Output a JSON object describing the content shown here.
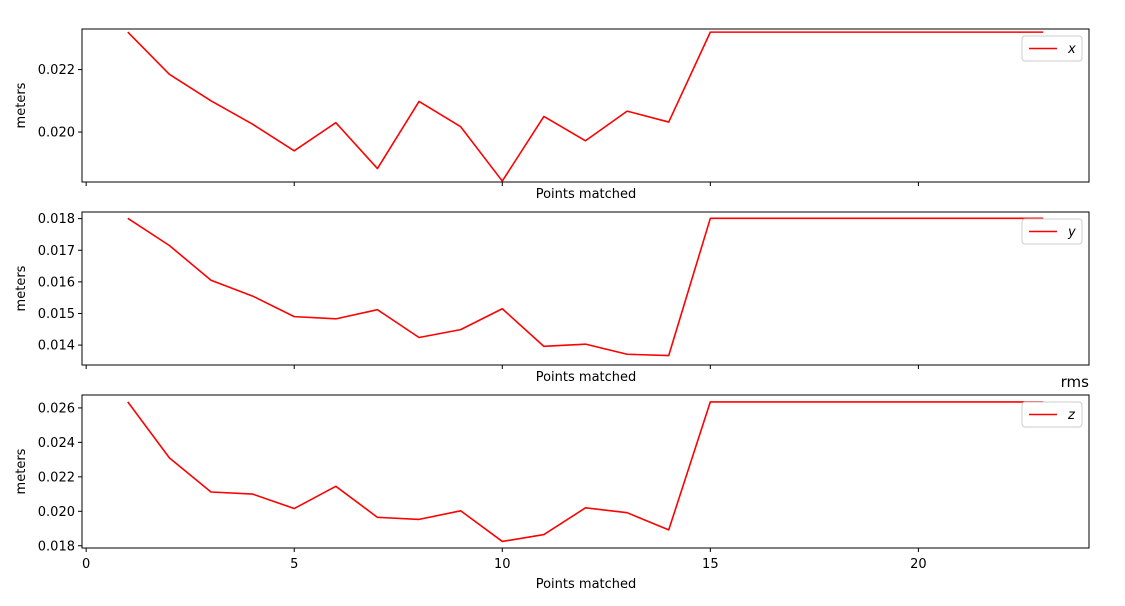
{
  "chart_data": [
    {
      "type": "line",
      "title": "",
      "xlabel": "Points matched",
      "ylabel": "meters",
      "xlim": [
        -0.1,
        24.1
      ],
      "ylim": [
        0.0184,
        0.0233
      ],
      "xticks": [
        0,
        5,
        10,
        15,
        20
      ],
      "show_xticklabels": false,
      "yticks": [
        0.02,
        0.022
      ],
      "ytick_labels": [
        "0.020",
        "0.022"
      ],
      "grid": false,
      "legend_position": "top-right",
      "color": "#ff0000",
      "series": [
        {
          "name": "x",
          "x": [
            1,
            2,
            3,
            4,
            5,
            6,
            7,
            8,
            9,
            10,
            11,
            12,
            13,
            14,
            15,
            16,
            17,
            18,
            19,
            20,
            21,
            22,
            23
          ],
          "y": [
            0.0232,
            0.02185,
            0.021,
            0.02025,
            0.0194,
            0.0203,
            0.01883,
            0.02098,
            0.02017,
            0.01843,
            0.0205,
            0.01972,
            0.02067,
            0.02032,
            0.0232,
            0.0232,
            0.0232,
            0.0232,
            0.0232,
            0.0232,
            0.0232,
            0.0232,
            0.0232
          ]
        }
      ]
    },
    {
      "type": "line",
      "title": "",
      "xlabel": "Points matched",
      "ylabel": "meters",
      "xlim": [
        -0.1,
        24.1
      ],
      "ylim": [
        0.01337,
        0.01821
      ],
      "xticks": [
        0,
        5,
        10,
        15,
        20
      ],
      "show_xticklabels": false,
      "yticks": [
        0.014,
        0.015,
        0.016,
        0.017,
        0.018
      ],
      "ytick_labels": [
        "0.014",
        "0.015",
        "0.016",
        "0.017",
        "0.018"
      ],
      "grid": false,
      "legend_position": "top-right",
      "color": "#ff0000",
      "series": [
        {
          "name": "y",
          "x": [
            1,
            2,
            3,
            4,
            5,
            6,
            7,
            8,
            9,
            10,
            11,
            12,
            13,
            14,
            15,
            16,
            17,
            18,
            19,
            20,
            21,
            22,
            23
          ],
          "y": [
            0.01801,
            0.01715,
            0.01605,
            0.01555,
            0.0149,
            0.01483,
            0.01512,
            0.01424,
            0.01449,
            0.01515,
            0.01396,
            0.01403,
            0.01371,
            0.01367,
            0.01801,
            0.01801,
            0.01801,
            0.01801,
            0.01801,
            0.01801,
            0.01801,
            0.01801,
            0.01801
          ]
        }
      ]
    },
    {
      "type": "line",
      "title": "rms",
      "xlabel": "Points matched",
      "ylabel": "meters",
      "xlim": [
        -0.1,
        24.1
      ],
      "ylim": [
        0.01787,
        0.02675
      ],
      "xticks": [
        0,
        5,
        10,
        15,
        20
      ],
      "xtick_labels": [
        "0",
        "5",
        "10",
        "15",
        "20"
      ],
      "show_xticklabels": true,
      "yticks": [
        0.018,
        0.02,
        0.022,
        0.024,
        0.026
      ],
      "ytick_labels": [
        "0.018",
        "0.020",
        "0.022",
        "0.024",
        "0.026"
      ],
      "grid": false,
      "legend_position": "top-right",
      "color": "#ff0000",
      "series": [
        {
          "name": "z",
          "x": [
            1,
            2,
            3,
            4,
            5,
            6,
            7,
            8,
            9,
            10,
            11,
            12,
            13,
            14,
            15,
            16,
            17,
            18,
            19,
            20,
            21,
            22,
            23
          ],
          "y": [
            0.02635,
            0.0231,
            0.02112,
            0.021,
            0.02016,
            0.02145,
            0.01965,
            0.01953,
            0.02003,
            0.01825,
            0.01865,
            0.0202,
            0.01992,
            0.01892,
            0.02635,
            0.02635,
            0.02635,
            0.02635,
            0.02635,
            0.02635,
            0.02635,
            0.02635,
            0.02635
          ]
        }
      ]
    }
  ]
}
